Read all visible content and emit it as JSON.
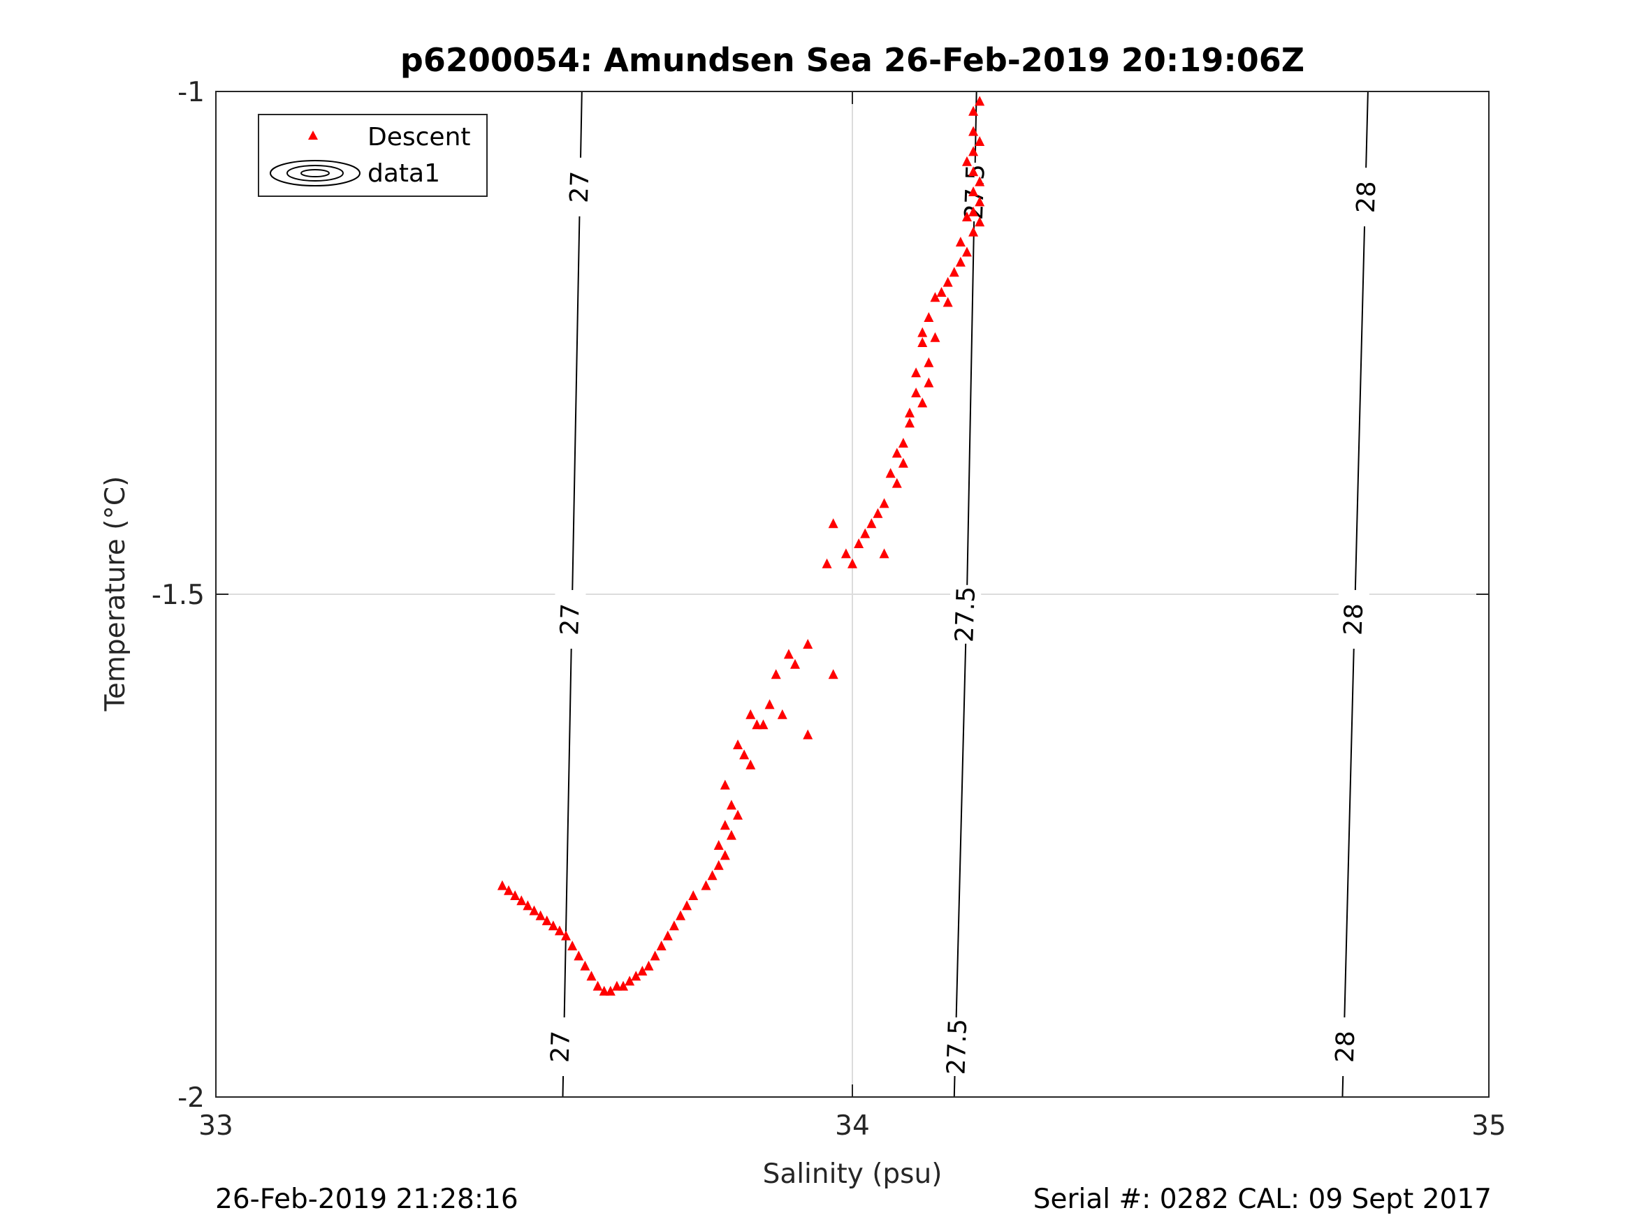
{
  "title": "p6200054: Amundsen Sea 26-Feb-2019 20:19:06Z",
  "footer": {
    "left": "26-Feb-2019 21:28:16",
    "right": "Serial #: 0282  CAL: 09 Sept 2017"
  },
  "colors": {
    "marker": "#ff0000",
    "contour": "#000000",
    "grid": "#dcdcdc",
    "axis": "#262626"
  },
  "chart_data": {
    "type": "scatter",
    "title": "p6200054: Amundsen Sea 26-Feb-2019 20:19:06Z",
    "xlabel": "Salinity (psu)",
    "ylabel": "Temperature (°C)",
    "xlim": [
      33,
      35
    ],
    "ylim": [
      -2,
      -1
    ],
    "xticks": [
      33,
      34,
      35
    ],
    "yticks": [
      -2,
      -1.5,
      -1
    ],
    "xtick_labels": [
      "33",
      "34",
      "35"
    ],
    "ytick_labels": [
      "-2",
      "-1.5",
      "-1"
    ],
    "grid": true,
    "legend": {
      "location": "top-left",
      "entries": [
        {
          "name": "Descent",
          "marker": "triangle",
          "color": "#ff0000"
        },
        {
          "name": "data1",
          "marker": "contour",
          "color": "#000000"
        }
      ]
    },
    "contours": [
      {
        "level": "27",
        "points": [
          [
            33.575,
            -1.0
          ],
          [
            33.56,
            -1.5
          ],
          [
            33.545,
            -2.0
          ]
        ],
        "label_positions": [
          [
            33.572,
            -1.095
          ],
          [
            33.557,
            -1.525
          ],
          [
            33.542,
            -1.95
          ]
        ]
      },
      {
        "level": "27.5",
        "points": [
          [
            34.195,
            -1.0
          ],
          [
            34.18,
            -1.5
          ],
          [
            34.16,
            -2.0
          ]
        ],
        "label_positions": [
          [
            34.193,
            -1.1
          ],
          [
            34.178,
            -1.52
          ],
          [
            34.165,
            -1.95
          ]
        ]
      },
      {
        "level": "28",
        "points": [
          [
            34.81,
            -1.0
          ],
          [
            34.79,
            -1.5
          ],
          [
            34.77,
            -2.0
          ]
        ],
        "label_positions": [
          [
            34.808,
            -1.105
          ],
          [
            34.788,
            -1.525
          ],
          [
            34.775,
            -1.95
          ]
        ]
      }
    ],
    "series": [
      {
        "name": "Descent",
        "points": [
          [
            34.2,
            -1.01
          ],
          [
            34.19,
            -1.02
          ],
          [
            34.19,
            -1.04
          ],
          [
            34.2,
            -1.05
          ],
          [
            34.19,
            -1.06
          ],
          [
            34.18,
            -1.07
          ],
          [
            34.19,
            -1.08
          ],
          [
            34.2,
            -1.09
          ],
          [
            34.19,
            -1.1
          ],
          [
            34.2,
            -1.11
          ],
          [
            34.19,
            -1.12
          ],
          [
            34.18,
            -1.125
          ],
          [
            34.2,
            -1.13
          ],
          [
            34.19,
            -1.14
          ],
          [
            34.17,
            -1.15
          ],
          [
            34.18,
            -1.16
          ],
          [
            34.17,
            -1.17
          ],
          [
            34.16,
            -1.18
          ],
          [
            34.15,
            -1.19
          ],
          [
            34.14,
            -1.2
          ],
          [
            34.13,
            -1.205
          ],
          [
            34.15,
            -1.21
          ],
          [
            34.12,
            -1.225
          ],
          [
            34.11,
            -1.24
          ],
          [
            34.13,
            -1.245
          ],
          [
            34.11,
            -1.25
          ],
          [
            34.12,
            -1.27
          ],
          [
            34.1,
            -1.28
          ],
          [
            34.12,
            -1.29
          ],
          [
            34.1,
            -1.3
          ],
          [
            34.11,
            -1.31
          ],
          [
            34.09,
            -1.32
          ],
          [
            34.09,
            -1.33
          ],
          [
            34.08,
            -1.35
          ],
          [
            34.07,
            -1.36
          ],
          [
            34.08,
            -1.37
          ],
          [
            34.06,
            -1.38
          ],
          [
            34.07,
            -1.39
          ],
          [
            34.05,
            -1.41
          ],
          [
            34.04,
            -1.42
          ],
          [
            34.03,
            -1.43
          ],
          [
            34.02,
            -1.44
          ],
          [
            34.01,
            -1.45
          ],
          [
            33.99,
            -1.46
          ],
          [
            34.0,
            -1.47
          ],
          [
            33.97,
            -1.43
          ],
          [
            34.05,
            -1.46
          ],
          [
            33.96,
            -1.47
          ],
          [
            33.93,
            -1.55
          ],
          [
            33.9,
            -1.56
          ],
          [
            33.91,
            -1.57
          ],
          [
            33.88,
            -1.58
          ],
          [
            33.97,
            -1.58
          ],
          [
            33.87,
            -1.61
          ],
          [
            33.89,
            -1.62
          ],
          [
            33.84,
            -1.62
          ],
          [
            33.85,
            -1.63
          ],
          [
            33.86,
            -1.63
          ],
          [
            33.82,
            -1.65
          ],
          [
            33.83,
            -1.66
          ],
          [
            33.84,
            -1.67
          ],
          [
            33.8,
            -1.69
          ],
          [
            33.93,
            -1.64
          ],
          [
            33.81,
            -1.71
          ],
          [
            33.82,
            -1.72
          ],
          [
            33.8,
            -1.73
          ],
          [
            33.81,
            -1.74
          ],
          [
            33.79,
            -1.75
          ],
          [
            33.8,
            -1.76
          ],
          [
            33.79,
            -1.77
          ],
          [
            33.78,
            -1.78
          ],
          [
            33.77,
            -1.79
          ],
          [
            33.75,
            -1.8
          ],
          [
            33.74,
            -1.81
          ],
          [
            33.73,
            -1.82
          ],
          [
            33.72,
            -1.83
          ],
          [
            33.71,
            -1.84
          ],
          [
            33.7,
            -1.85
          ],
          [
            33.69,
            -1.86
          ],
          [
            33.68,
            -1.87
          ],
          [
            33.67,
            -1.875
          ],
          [
            33.66,
            -1.88
          ],
          [
            33.65,
            -1.885
          ],
          [
            33.64,
            -1.89
          ],
          [
            33.63,
            -1.89
          ],
          [
            33.62,
            -1.895
          ],
          [
            33.61,
            -1.895
          ],
          [
            33.6,
            -1.89
          ],
          [
            33.59,
            -1.88
          ],
          [
            33.58,
            -1.87
          ],
          [
            33.57,
            -1.86
          ],
          [
            33.56,
            -1.85
          ],
          [
            33.55,
            -1.84
          ],
          [
            33.54,
            -1.835
          ],
          [
            33.53,
            -1.83
          ],
          [
            33.52,
            -1.825
          ],
          [
            33.51,
            -1.82
          ],
          [
            33.5,
            -1.815
          ],
          [
            33.49,
            -1.81
          ],
          [
            33.48,
            -1.805
          ],
          [
            33.47,
            -1.8
          ],
          [
            33.46,
            -1.795
          ],
          [
            33.45,
            -1.79
          ]
        ]
      }
    ]
  }
}
